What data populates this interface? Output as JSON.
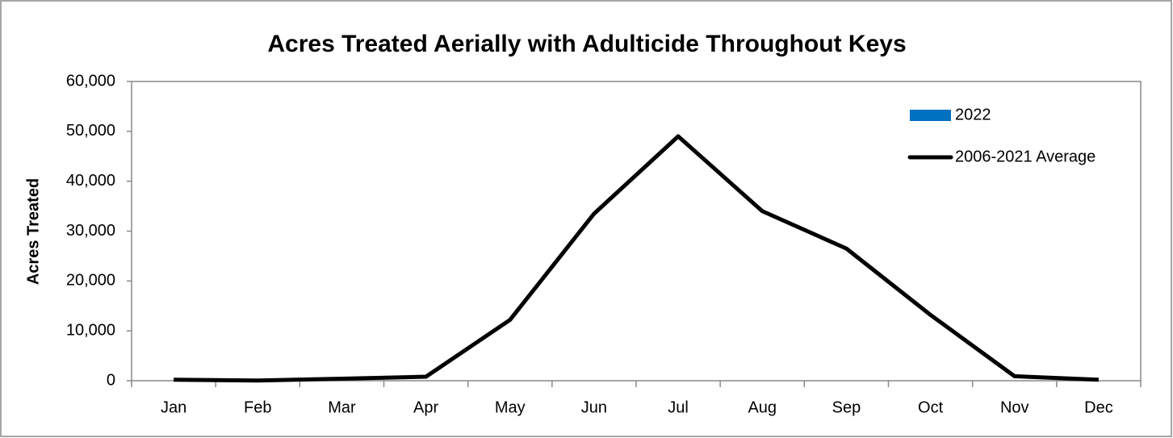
{
  "chart_data": {
    "type": "bar",
    "title": "Acres Treated Aerially with Adulticide Throughout Keys",
    "y_label": "Acres Treated",
    "categories": [
      "Jan",
      "Feb",
      "Mar",
      "Apr",
      "May",
      "Jun",
      "Jul",
      "Aug",
      "Sep",
      "Oct",
      "Nov",
      "Dec"
    ],
    "series": [
      {
        "name": "2022",
        "type": "bar",
        "color": "#0070c0",
        "values": [
          null,
          null,
          null,
          null,
          null,
          null,
          null,
          null,
          null,
          null,
          null,
          null
        ]
      },
      {
        "name": "2006-2021 Average",
        "type": "line",
        "color": "#000000",
        "values": [
          200,
          50,
          400,
          800,
          12200,
          33500,
          49000,
          34000,
          26500,
          13200,
          900,
          200
        ]
      }
    ],
    "ylim": [
      0,
      60000
    ],
    "yticks": [
      0,
      {
        "value": 10000,
        "label": "10,000"
      },
      {
        "value": 20000,
        "label": "20,000"
      },
      {
        "value": 30000,
        "label": "30,000"
      },
      {
        "value": 40000,
        "label": "40,000"
      },
      {
        "value": 50000,
        "label": "50,000"
      },
      {
        "value": 60000,
        "label": "60,000"
      }
    ],
    "legend": "top-right"
  }
}
